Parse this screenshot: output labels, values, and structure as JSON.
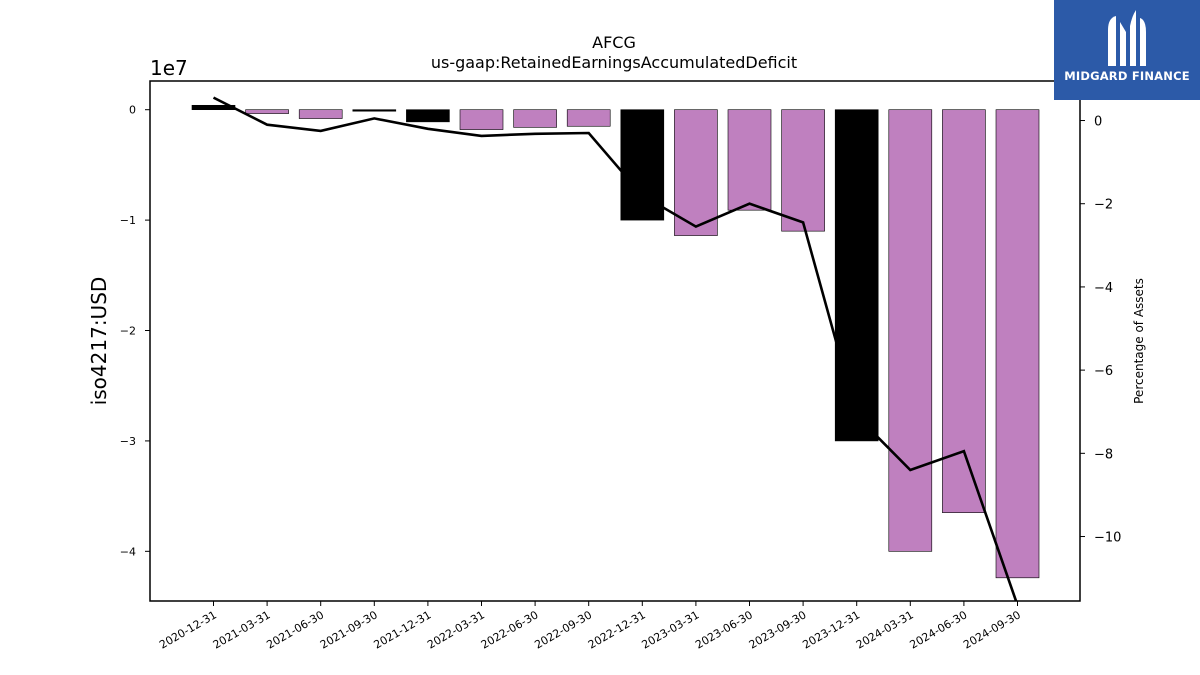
{
  "logo": {
    "text": "MIDGARD FINANCE",
    "icon": "midgard-m-icon"
  },
  "chart_data": {
    "type": "bar",
    "title": "AFCG",
    "subtitle": "us-gaap:RetainedEarningsAccumulatedDeficit",
    "ylabel": "iso4217:USD",
    "y2label": "Percentage of Assets",
    "y_offset_label": "1e7",
    "categories": [
      "2020-12-31",
      "2021-03-31",
      "2021-06-30",
      "2021-09-30",
      "2021-12-31",
      "2022-03-31",
      "2022-06-30",
      "2022-09-30",
      "2022-12-31",
      "2023-03-31",
      "2023-06-30",
      "2023-09-30",
      "2023-12-31",
      "2024-03-31",
      "2024-06-30",
      "2024-09-30"
    ],
    "values": [
      400000,
      -350000,
      -800000,
      -50000,
      -1100000,
      -1800000,
      -1600000,
      -1500000,
      -10000000,
      -11400000,
      -9100000,
      -11000000,
      -30000000,
      -40000000,
      -36500000,
      -42400000
    ],
    "bar_colors": [
      "#000000",
      "#bf80bf",
      "#bf80bf",
      "#000000",
      "#000000",
      "#bf80bf",
      "#bf80bf",
      "#bf80bf",
      "#000000",
      "#bf80bf",
      "#bf80bf",
      "#bf80bf",
      "#000000",
      "#bf80bf",
      "#bf80bf",
      "#bf80bf"
    ],
    "percent_of_assets": [
      0.55,
      -0.1,
      -0.25,
      0.05,
      -0.2,
      -0.37,
      -0.32,
      -0.3,
      -1.8,
      -2.55,
      -2.0,
      -2.45,
      -7.1,
      -8.4,
      -7.95,
      -11.65
    ],
    "ylim": [
      -44500000,
      2600000
    ],
    "y2lim": [
      -11.55,
      0.95
    ],
    "yticks": [
      0,
      -10000000,
      -20000000,
      -30000000,
      -40000000
    ],
    "ytick_labels": [
      "0",
      "−1",
      "−2",
      "−3",
      "−4"
    ],
    "y2ticks": [
      0,
      -2,
      -4,
      -6,
      -8,
      -10
    ],
    "y2tick_labels": [
      "0",
      "−2",
      "−4",
      "−6",
      "−8",
      "−10"
    ],
    "line_color": "#000000"
  }
}
